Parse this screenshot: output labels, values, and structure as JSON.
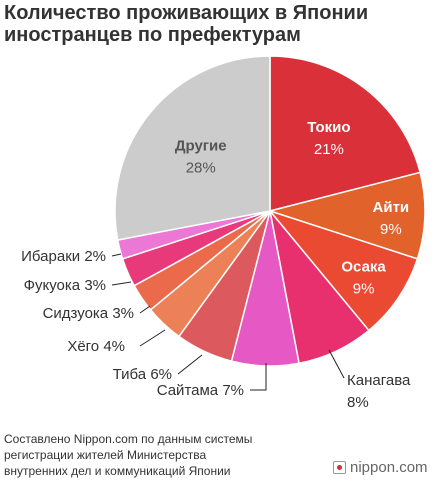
{
  "title": {
    "line1": "Количество проживающих в Японии",
    "line2": "иностранцев по префектурам"
  },
  "chart_data": {
    "type": "pie",
    "title": "Количество проживающих в Японии иностранцев по префектурам",
    "start_angle_deg": 0,
    "direction": "clockwise",
    "slices": [
      {
        "label": "Токио",
        "value_label": "21%",
        "value": 21,
        "color": "#d9303a"
      },
      {
        "label": "Айти",
        "value_label": "9%",
        "value": 9,
        "color": "#e2622b"
      },
      {
        "label": "Осака",
        "value_label": "9%",
        "value": 9,
        "color": "#ea4a32"
      },
      {
        "label": "Канагава",
        "value_label": "8%",
        "value": 8,
        "color": "#e8306e"
      },
      {
        "label": "Сайтама",
        "value_label": "7%",
        "value": 7,
        "color": "#e658c4"
      },
      {
        "label": "Тиба",
        "value_label": "6%",
        "value": 6,
        "color": "#dc5a5e"
      },
      {
        "label": "Хёго",
        "value_label": "4%",
        "value": 4,
        "color": "#ec8056"
      },
      {
        "label": "Сидзуока",
        "value_label": "3%",
        "value": 3,
        "color": "#ec6a4c"
      },
      {
        "label": "Фукуока",
        "value_label": "3%",
        "value": 3,
        "color": "#e83a7a"
      },
      {
        "label": "Ибараки",
        "value_label": "2%",
        "value": 2,
        "color": "#ec78d6"
      },
      {
        "label": "Другие",
        "value_label": "28%",
        "value": 28,
        "color": "#cccccc"
      }
    ]
  },
  "footer": {
    "line1": "Составлено Nippon.com по данным системы",
    "line2": "регистрации жителей Министерства",
    "line3": "внутренних дел и коммуникаций Японии"
  },
  "brand": {
    "name": "nippon.com"
  }
}
